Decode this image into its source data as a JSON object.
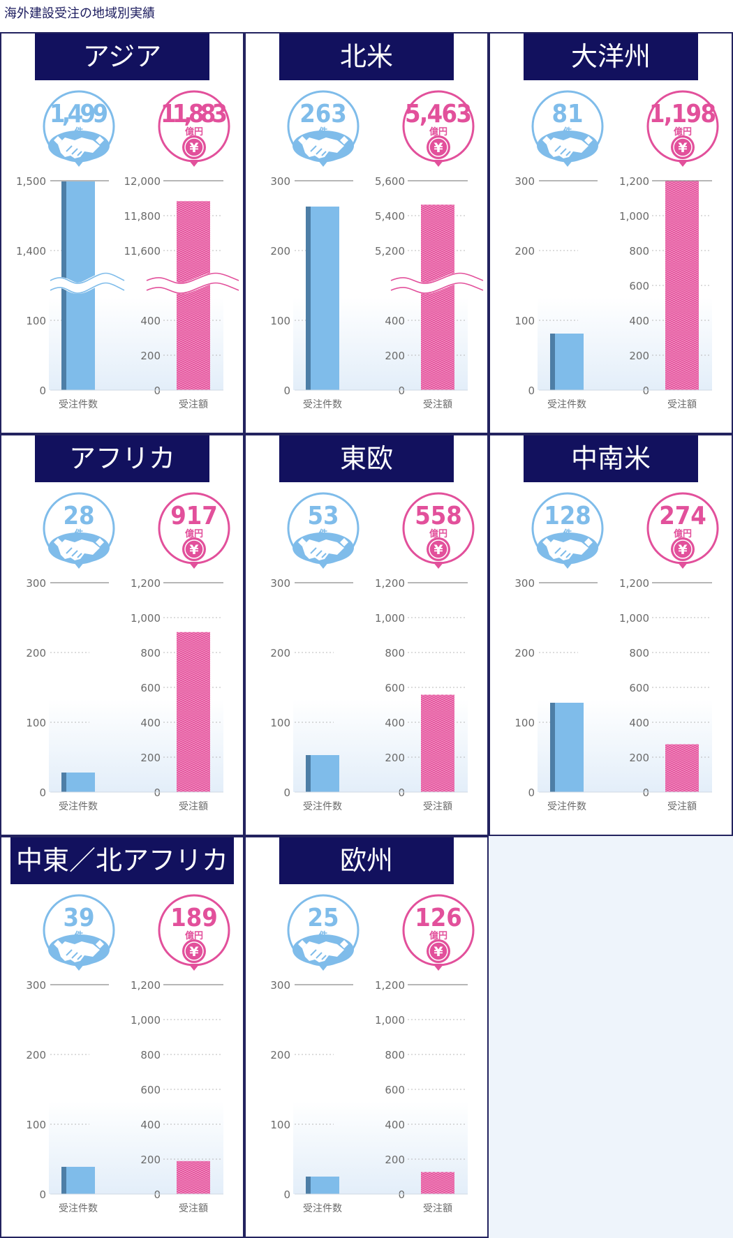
{
  "page_title": "海外建設受注の地域別実績",
  "units": {
    "count": "件",
    "amount": "億円",
    "yen_symbol": "¥"
  },
  "axis_categories": {
    "count": "受注件数",
    "amount": "受注額"
  },
  "colors": {
    "navy": "#12115e",
    "panel_border": "#23235f",
    "count_blue": "#7fbcea",
    "count_blue_dark": "#4d7ea6",
    "amount_pink": "#e2509b",
    "amount_pink_light": "#f291c1",
    "tick_text": "#6a6a6a",
    "page_bg": "#eef4fb"
  },
  "chart_data": [
    {
      "type": "bar",
      "region": "アジア",
      "count": 1499,
      "amount": 11883,
      "count_label": "1,499",
      "amount_label": "11,883",
      "count_axis": {
        "broken": true,
        "low_ticks": [
          0,
          100
        ],
        "high_ticks": [
          1400,
          1500
        ],
        "tick_labels": [
          "0",
          "100",
          "1,400",
          "1,500"
        ]
      },
      "amount_axis": {
        "broken": true,
        "low_ticks": [
          0,
          200,
          400
        ],
        "high_ticks": [
          11600,
          11800,
          12000
        ],
        "tick_labels": [
          "0",
          "200",
          "400",
          "11,600",
          "11,800",
          "12,000"
        ]
      }
    },
    {
      "type": "bar",
      "region": "北米",
      "count": 263,
      "amount": 5463,
      "count_label": "263",
      "amount_label": "5,463",
      "count_axis": {
        "broken": false,
        "ylim": [
          0,
          300
        ],
        "tick_labels": [
          "0",
          "100",
          "200",
          "300"
        ]
      },
      "amount_axis": {
        "broken": true,
        "low_ticks": [
          0,
          200,
          400
        ],
        "high_ticks": [
          5200,
          5400,
          5600
        ],
        "tick_labels": [
          "0",
          "200",
          "400",
          "5,200",
          "5,400",
          "5,600"
        ]
      }
    },
    {
      "type": "bar",
      "region": "大洋州",
      "count": 81,
      "amount": 1198,
      "count_label": "81",
      "amount_label": "1,198",
      "count_axis": {
        "broken": false,
        "ylim": [
          0,
          300
        ],
        "tick_labels": [
          "0",
          "100",
          "200",
          "300"
        ]
      },
      "amount_axis": {
        "broken": false,
        "ylim": [
          0,
          1200
        ],
        "tick_labels": [
          "0",
          "200",
          "400",
          "600",
          "800",
          "1,000",
          "1,200"
        ]
      }
    },
    {
      "type": "bar",
      "region": "アフリカ",
      "count": 28,
      "amount": 917,
      "count_label": "28",
      "amount_label": "917",
      "count_axis": {
        "broken": false,
        "ylim": [
          0,
          300
        ],
        "tick_labels": [
          "0",
          "100",
          "200",
          "300"
        ]
      },
      "amount_axis": {
        "broken": false,
        "ylim": [
          0,
          1200
        ],
        "tick_labels": [
          "0",
          "200",
          "400",
          "600",
          "800",
          "1,000",
          "1,200"
        ]
      }
    },
    {
      "type": "bar",
      "region": "東欧",
      "count": 53,
      "amount": 558,
      "count_label": "53",
      "amount_label": "558",
      "count_axis": {
        "broken": false,
        "ylim": [
          0,
          300
        ],
        "tick_labels": [
          "0",
          "100",
          "200",
          "300"
        ]
      },
      "amount_axis": {
        "broken": false,
        "ylim": [
          0,
          1200
        ],
        "tick_labels": [
          "0",
          "200",
          "400",
          "600",
          "800",
          "1,000",
          "1,200"
        ]
      }
    },
    {
      "type": "bar",
      "region": "中南米",
      "count": 128,
      "amount": 274,
      "count_label": "128",
      "amount_label": "274",
      "count_axis": {
        "broken": false,
        "ylim": [
          0,
          300
        ],
        "tick_labels": [
          "0",
          "100",
          "200",
          "300"
        ]
      },
      "amount_axis": {
        "broken": false,
        "ylim": [
          0,
          1200
        ],
        "tick_labels": [
          "0",
          "200",
          "400",
          "600",
          "800",
          "1,000",
          "1,200"
        ]
      }
    },
    {
      "type": "bar",
      "region": "中東／北アフリカ",
      "count": 39,
      "amount": 189,
      "count_label": "39",
      "amount_label": "189",
      "count_axis": {
        "broken": false,
        "ylim": [
          0,
          300
        ],
        "tick_labels": [
          "0",
          "100",
          "200",
          "300"
        ]
      },
      "amount_axis": {
        "broken": false,
        "ylim": [
          0,
          1200
        ],
        "tick_labels": [
          "0",
          "200",
          "400",
          "600",
          "800",
          "1,000",
          "1,200"
        ]
      }
    },
    {
      "type": "bar",
      "region": "欧州",
      "count": 25,
      "amount": 126,
      "count_label": "25",
      "amount_label": "126",
      "count_axis": {
        "broken": false,
        "ylim": [
          0,
          300
        ],
        "tick_labels": [
          "0",
          "100",
          "200",
          "300"
        ]
      },
      "amount_axis": {
        "broken": false,
        "ylim": [
          0,
          1200
        ],
        "tick_labels": [
          "0",
          "200",
          "400",
          "600",
          "800",
          "1,000",
          "1,200"
        ]
      }
    }
  ]
}
